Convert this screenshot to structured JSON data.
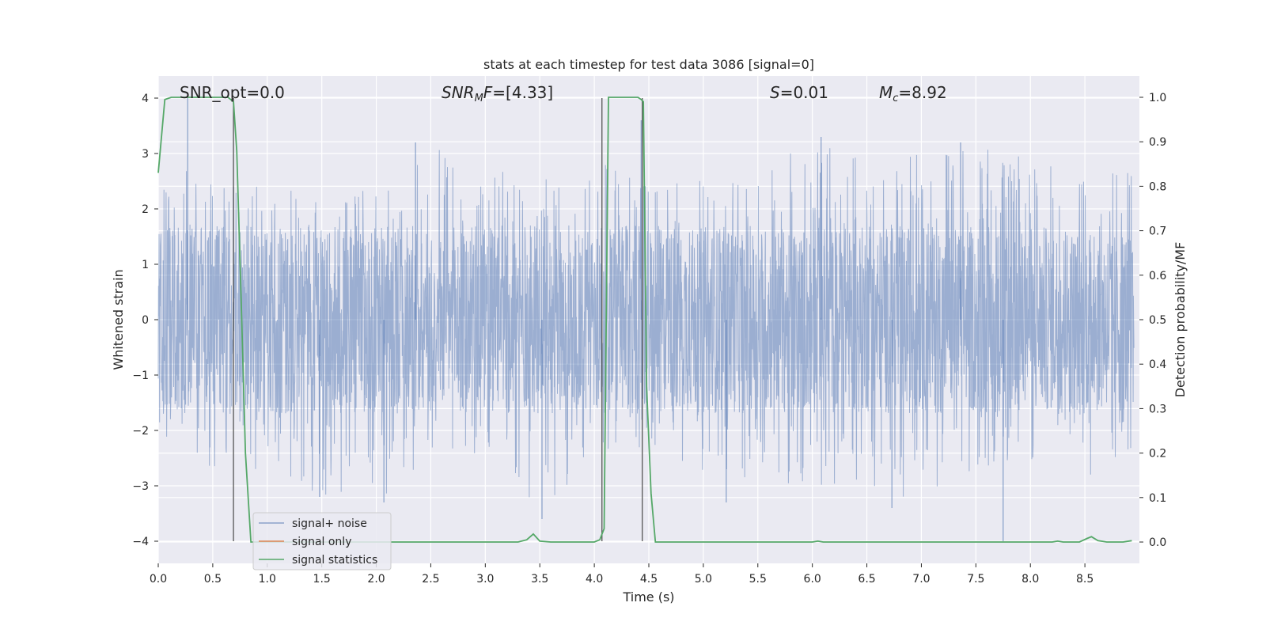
{
  "chart_data": {
    "type": "line",
    "title": "stats at each timestep for test data 3086 [signal=0]",
    "xlabel": "Time (s)",
    "ylabel": "Whitened strain",
    "ylabel_right": "Detection probability/MF",
    "xlim": [
      0,
      9.0
    ],
    "ylim": [
      -4.4,
      4.4
    ],
    "ylim_right": [
      -0.048,
      1.048
    ],
    "x_ticks": [
      0.0,
      0.5,
      1.0,
      1.5,
      2.0,
      2.5,
      3.0,
      3.5,
      4.0,
      4.5,
      5.0,
      5.5,
      6.0,
      6.5,
      7.0,
      7.5,
      8.0,
      8.5
    ],
    "x_tick_labels": [
      "0.0",
      "0.5",
      "1.0",
      "1.5",
      "2.0",
      "2.5",
      "3.0",
      "3.5",
      "4.0",
      "4.5",
      "5.0",
      "5.5",
      "6.0",
      "6.5",
      "7.0",
      "7.5",
      "8.0",
      "8.5"
    ],
    "y_ticks": [
      4,
      3,
      2,
      1,
      0,
      -1,
      -2,
      -3,
      -4
    ],
    "y_tick_labels": [
      "4",
      "3",
      "2",
      "1",
      "0",
      "−1",
      "−2",
      "−3",
      "−4"
    ],
    "y_ticks_right": [
      1.0,
      0.9,
      0.8,
      0.7,
      0.6,
      0.5,
      0.4,
      0.3,
      0.2,
      0.1,
      0.0
    ],
    "y_tick_labels_right": [
      "1.0",
      "0.9",
      "0.8",
      "0.7",
      "0.6",
      "0.5",
      "0.4",
      "0.3",
      "0.2",
      "0.1",
      "0.0"
    ],
    "grid": true,
    "legend_position": "lower-left",
    "annotations": [
      {
        "prefix": "SNR_opt=",
        "value": "0.0",
        "x": 0.2
      },
      {
        "prefix_italic": "SNR",
        "sub": "M",
        "italic_tail": "F",
        "suffix": "=[4.33]",
        "x": 2.6
      },
      {
        "prefix_italic": "S",
        "suffix": "=0.01",
        "x": 5.6
      },
      {
        "prefix_italic": "M",
        "sub": "c",
        "suffix": "=8.92",
        "x": 6.6
      }
    ],
    "series": [
      {
        "name": "signal+ noise",
        "color": "#4c72b0",
        "style": "noise",
        "envelope_x": [
          0.0,
          0.5,
          1.0,
          1.5,
          2.0,
          2.5,
          3.0,
          3.5,
          4.0,
          4.5,
          5.0,
          5.5,
          6.0,
          6.5,
          7.0,
          7.5,
          8.0,
          8.5,
          8.95
        ],
        "envelope_max": [
          2.9,
          2.5,
          2.4,
          2.3,
          2.6,
          3.2,
          2.7,
          2.6,
          3.1,
          2.5,
          2.6,
          2.7,
          3.3,
          3.0,
          3.0,
          3.2,
          2.9,
          2.6,
          2.7
        ],
        "envelope_min": [
          -2.6,
          -2.7,
          -2.7,
          -3.2,
          -3.3,
          -2.5,
          -2.4,
          -3.6,
          -2.4,
          -2.3,
          -2.8,
          -2.9,
          -3.0,
          -3.1,
          -3.4,
          -2.7,
          -2.6,
          -2.9,
          -2.3
        ],
        "spikes": [
          {
            "x": 0.27,
            "y": 4.0
          },
          {
            "x": 0.69,
            "y": 2.4
          },
          {
            "x": 1.48,
            "y": -3.2
          },
          {
            "x": 2.07,
            "y": -3.3
          },
          {
            "x": 2.36,
            "y": 3.2
          },
          {
            "x": 3.52,
            "y": -3.6
          },
          {
            "x": 4.43,
            "y": 3.6
          },
          {
            "x": 5.21,
            "y": -3.3
          },
          {
            "x": 6.08,
            "y": 3.3
          },
          {
            "x": 6.73,
            "y": -3.4
          },
          {
            "x": 7.36,
            "y": 3.2
          },
          {
            "x": 7.75,
            "y": -4.0
          }
        ]
      },
      {
        "name": "signal only",
        "color": "#dd8452",
        "x": [],
        "y": []
      },
      {
        "name": "signal statistics",
        "color": "#55a868",
        "axis": "right",
        "x": [
          0.0,
          0.06,
          0.12,
          0.2,
          0.3,
          0.4,
          0.5,
          0.6,
          0.64,
          0.69,
          0.72,
          0.76,
          0.8,
          0.85,
          0.9,
          1.0,
          1.5,
          2.0,
          2.5,
          3.0,
          3.3,
          3.38,
          3.44,
          3.5,
          3.6,
          3.8,
          4.0,
          4.05,
          4.09,
          4.13,
          4.2,
          4.3,
          4.4,
          4.43,
          4.45,
          4.48,
          4.52,
          4.56,
          4.6,
          5.0,
          6.0,
          6.05,
          6.1,
          7.0,
          8.0,
          8.2,
          8.25,
          8.3,
          8.45,
          8.52,
          8.56,
          8.62,
          8.7,
          8.85,
          8.93
        ],
        "y": [
          0.83,
          0.995,
          1.0,
          1.0,
          1.0,
          1.0,
          1.0,
          1.0,
          1.0,
          0.99,
          0.88,
          0.55,
          0.2,
          0.0,
          0.0,
          0.0,
          0.0,
          0.0,
          0.0,
          0.0,
          0.0,
          0.005,
          0.018,
          0.002,
          0.0,
          0.0,
          0.0,
          0.005,
          0.03,
          1.0,
          1.0,
          1.0,
          1.0,
          0.995,
          0.99,
          0.35,
          0.11,
          0.0,
          0.0,
          0.0,
          0.0,
          0.002,
          0.0,
          0.0,
          0.0,
          0.0,
          0.002,
          0.0,
          0.0,
          0.008,
          0.012,
          0.003,
          0.0,
          0.0,
          0.003
        ]
      }
    ],
    "vertical_lines": [
      {
        "x": 0.69,
        "y": [
          -4.0,
          4.0
        ]
      },
      {
        "x": 4.07,
        "y": [
          -4.0,
          4.0
        ]
      },
      {
        "x": 4.44,
        "y": [
          -4.0,
          4.0
        ]
      }
    ]
  }
}
